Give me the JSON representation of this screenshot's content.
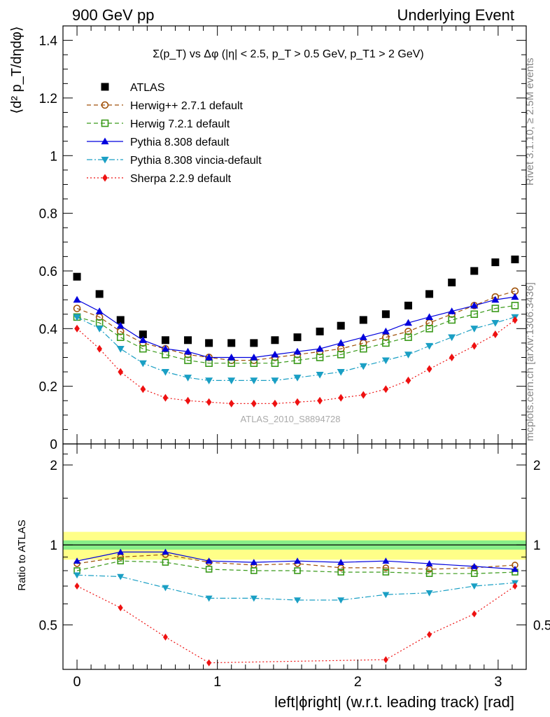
{
  "header": {
    "left": "900 GeV pp",
    "right": "Underlying Event"
  },
  "side": {
    "rivet": "Rivet 3.1.10, ≥ 2.5M events",
    "mcplots": "mcplots.cern.ch [arXiv:1306.3436]"
  },
  "watermark": "ATLAS_2010_S8894728",
  "chart_data": [
    {
      "type": "scatter",
      "title": "Σ(p_T) vs Δφ (|η| < 2.5, p_T > 0.5 GeV, p_T1 > 2 GeV)",
      "ylabel": "⟨d² p_T/dηdφ⟩",
      "ylim": [
        0,
        1.45
      ],
      "xlim": [
        -0.1,
        3.2
      ],
      "yticks": [
        0,
        0.2,
        0.4,
        0.6,
        0.8,
        1,
        1.2,
        1.4
      ],
      "ytick_labels": [
        "0",
        "0.2",
        "0.4",
        "0.6",
        "0.8",
        "1",
        "1.2",
        "1.4"
      ],
      "legend_position": "top-left",
      "series": [
        {
          "name": "ATLAS",
          "color": "#000000",
          "marker": "square-filled",
          "line": "none",
          "points": [
            [
              0.0,
              0.58
            ],
            [
              0.16,
              0.52
            ],
            [
              0.31,
              0.43
            ],
            [
              0.47,
              0.38
            ],
            [
              0.63,
              0.36
            ],
            [
              0.79,
              0.36
            ],
            [
              0.94,
              0.35
            ],
            [
              1.1,
              0.35
            ],
            [
              1.26,
              0.35
            ],
            [
              1.41,
              0.36
            ],
            [
              1.57,
              0.37
            ],
            [
              1.73,
              0.39
            ],
            [
              1.88,
              0.41
            ],
            [
              2.04,
              0.43
            ],
            [
              2.2,
              0.45
            ],
            [
              2.36,
              0.48
            ],
            [
              2.51,
              0.52
            ],
            [
              2.67,
              0.56
            ],
            [
              2.83,
              0.6
            ],
            [
              2.98,
              0.63
            ],
            [
              3.12,
              0.64
            ]
          ]
        },
        {
          "name": "Herwig++ 2.7.1 default",
          "color": "#a0520a",
          "marker": "circle-open",
          "line": "dashed",
          "points": [
            [
              0.0,
              0.47
            ],
            [
              0.16,
              0.44
            ],
            [
              0.31,
              0.39
            ],
            [
              0.47,
              0.35
            ],
            [
              0.63,
              0.33
            ],
            [
              0.79,
              0.31
            ],
            [
              0.94,
              0.3
            ],
            [
              1.1,
              0.29
            ],
            [
              1.26,
              0.29
            ],
            [
              1.41,
              0.3
            ],
            [
              1.57,
              0.31
            ],
            [
              1.73,
              0.32
            ],
            [
              1.88,
              0.33
            ],
            [
              2.04,
              0.35
            ],
            [
              2.2,
              0.37
            ],
            [
              2.36,
              0.39
            ],
            [
              2.51,
              0.42
            ],
            [
              2.67,
              0.45
            ],
            [
              2.83,
              0.48
            ],
            [
              2.98,
              0.51
            ],
            [
              3.12,
              0.53
            ]
          ]
        },
        {
          "name": "Herwig 7.2.1 default",
          "color": "#3a9a1a",
          "marker": "square-open",
          "line": "dashed",
          "points": [
            [
              0.0,
              0.44
            ],
            [
              0.16,
              0.42
            ],
            [
              0.31,
              0.37
            ],
            [
              0.47,
              0.33
            ],
            [
              0.63,
              0.31
            ],
            [
              0.79,
              0.29
            ],
            [
              0.94,
              0.28
            ],
            [
              1.1,
              0.28
            ],
            [
              1.26,
              0.28
            ],
            [
              1.41,
              0.28
            ],
            [
              1.57,
              0.29
            ],
            [
              1.73,
              0.3
            ],
            [
              1.88,
              0.31
            ],
            [
              2.04,
              0.33
            ],
            [
              2.2,
              0.35
            ],
            [
              2.36,
              0.37
            ],
            [
              2.51,
              0.4
            ],
            [
              2.67,
              0.43
            ],
            [
              2.83,
              0.45
            ],
            [
              2.98,
              0.47
            ],
            [
              3.12,
              0.48
            ]
          ]
        },
        {
          "name": "Pythia 8.308 default",
          "color": "#0000dd",
          "marker": "triangle-up-filled",
          "line": "solid",
          "points": [
            [
              0.0,
              0.5
            ],
            [
              0.16,
              0.46
            ],
            [
              0.31,
              0.41
            ],
            [
              0.47,
              0.36
            ],
            [
              0.63,
              0.33
            ],
            [
              0.79,
              0.32
            ],
            [
              0.94,
              0.3
            ],
            [
              1.1,
              0.3
            ],
            [
              1.26,
              0.3
            ],
            [
              1.41,
              0.31
            ],
            [
              1.57,
              0.32
            ],
            [
              1.73,
              0.33
            ],
            [
              1.88,
              0.35
            ],
            [
              2.04,
              0.37
            ],
            [
              2.2,
              0.39
            ],
            [
              2.36,
              0.42
            ],
            [
              2.51,
              0.44
            ],
            [
              2.67,
              0.46
            ],
            [
              2.83,
              0.48
            ],
            [
              2.98,
              0.5
            ],
            [
              3.12,
              0.51
            ]
          ]
        },
        {
          "name": "Pythia 8.308 vincia-default",
          "color": "#1a9fc4",
          "marker": "triangle-down-filled",
          "line": "dashdot",
          "points": [
            [
              0.0,
              0.44
            ],
            [
              0.16,
              0.4
            ],
            [
              0.31,
              0.33
            ],
            [
              0.47,
              0.28
            ],
            [
              0.63,
              0.25
            ],
            [
              0.79,
              0.23
            ],
            [
              0.94,
              0.22
            ],
            [
              1.1,
              0.22
            ],
            [
              1.26,
              0.22
            ],
            [
              1.41,
              0.22
            ],
            [
              1.57,
              0.23
            ],
            [
              1.73,
              0.24
            ],
            [
              1.88,
              0.25
            ],
            [
              2.04,
              0.27
            ],
            [
              2.2,
              0.29
            ],
            [
              2.36,
              0.31
            ],
            [
              2.51,
              0.34
            ],
            [
              2.67,
              0.37
            ],
            [
              2.83,
              0.4
            ],
            [
              2.98,
              0.42
            ],
            [
              3.12,
              0.44
            ]
          ]
        },
        {
          "name": "Sherpa 2.2.9 default",
          "color": "#ee1111",
          "marker": "diamond-filled",
          "line": "dotted",
          "points": [
            [
              0.0,
              0.4
            ],
            [
              0.16,
              0.33
            ],
            [
              0.31,
              0.25
            ],
            [
              0.47,
              0.19
            ],
            [
              0.63,
              0.16
            ],
            [
              0.79,
              0.15
            ],
            [
              0.94,
              0.145
            ],
            [
              1.1,
              0.14
            ],
            [
              1.26,
              0.14
            ],
            [
              1.41,
              0.14
            ],
            [
              1.57,
              0.145
            ],
            [
              1.73,
              0.15
            ],
            [
              1.88,
              0.16
            ],
            [
              2.04,
              0.17
            ],
            [
              2.2,
              0.19
            ],
            [
              2.36,
              0.22
            ],
            [
              2.51,
              0.26
            ],
            [
              2.67,
              0.3
            ],
            [
              2.83,
              0.34
            ],
            [
              2.98,
              0.38
            ],
            [
              3.12,
              0.43
            ]
          ]
        }
      ]
    },
    {
      "type": "scatter",
      "ylabel": "Ratio to ATLAS",
      "xlabel": "left|ϕright| (w.r.t. leading track) [rad]",
      "xticks": [
        0,
        1,
        2,
        3
      ],
      "xtick_labels": [
        "0",
        "1",
        "2",
        "3"
      ],
      "ylim": [
        0.34,
        2.4
      ],
      "yticks": [
        0.5,
        1,
        2
      ],
      "ytick_labels": [
        "0.5",
        "1",
        "2"
      ],
      "bands": [
        {
          "name": "ATLAS total uncertainty",
          "color": "#ffff88",
          "range": [
            0.88,
            1.12
          ]
        },
        {
          "name": "ATLAS stat. uncertainty",
          "color": "#88ee88",
          "range": [
            0.96,
            1.04
          ]
        }
      ],
      "series": [
        {
          "name": "Herwig++ 2.7.1 default",
          "color": "#a0520a",
          "marker": "circle-open",
          "line": "dashed",
          "points": [
            [
              0.0,
              0.85
            ],
            [
              0.31,
              0.9
            ],
            [
              0.63,
              0.92
            ],
            [
              0.94,
              0.86
            ],
            [
              1.26,
              0.84
            ],
            [
              1.57,
              0.85
            ],
            [
              1.88,
              0.82
            ],
            [
              2.2,
              0.82
            ],
            [
              2.51,
              0.81
            ],
            [
              2.83,
              0.82
            ],
            [
              3.12,
              0.84
            ]
          ]
        },
        {
          "name": "Herwig 7.2.1 default",
          "color": "#3a9a1a",
          "marker": "square-open",
          "line": "dashed",
          "points": [
            [
              0.0,
              0.8
            ],
            [
              0.31,
              0.87
            ],
            [
              0.63,
              0.86
            ],
            [
              0.94,
              0.81
            ],
            [
              1.26,
              0.8
            ],
            [
              1.57,
              0.8
            ],
            [
              1.88,
              0.79
            ],
            [
              2.2,
              0.79
            ],
            [
              2.51,
              0.78
            ],
            [
              2.83,
              0.78
            ],
            [
              3.12,
              0.79
            ]
          ]
        },
        {
          "name": "Pythia 8.308 default",
          "color": "#0000dd",
          "marker": "triangle-up-filled",
          "line": "solid",
          "points": [
            [
              0.0,
              0.87
            ],
            [
              0.31,
              0.94
            ],
            [
              0.63,
              0.94
            ],
            [
              0.94,
              0.87
            ],
            [
              1.26,
              0.86
            ],
            [
              1.57,
              0.87
            ],
            [
              1.88,
              0.86
            ],
            [
              2.2,
              0.87
            ],
            [
              2.51,
              0.85
            ],
            [
              2.83,
              0.83
            ],
            [
              3.12,
              0.81
            ]
          ]
        },
        {
          "name": "Pythia 8.308 vincia-default",
          "color": "#1a9fc4",
          "marker": "triangle-down-filled",
          "line": "dashdot",
          "points": [
            [
              0.0,
              0.77
            ],
            [
              0.31,
              0.76
            ],
            [
              0.63,
              0.69
            ],
            [
              0.94,
              0.63
            ],
            [
              1.26,
              0.63
            ],
            [
              1.57,
              0.62
            ],
            [
              1.88,
              0.62
            ],
            [
              2.2,
              0.65
            ],
            [
              2.51,
              0.66
            ],
            [
              2.83,
              0.7
            ],
            [
              3.12,
              0.72
            ]
          ]
        },
        {
          "name": "Sherpa 2.2.9 default",
          "color": "#ee1111",
          "marker": "diamond-filled",
          "line": "dotted",
          "points": [
            [
              0.0,
              0.7
            ],
            [
              0.31,
              0.58
            ],
            [
              0.63,
              0.45
            ],
            [
              0.94,
              0.36
            ],
            [
              1.26,
              0.34
            ],
            [
              1.57,
              0.31
            ],
            [
              1.88,
              0.31
            ],
            [
              2.2,
              0.37
            ],
            [
              2.51,
              0.46
            ],
            [
              2.83,
              0.55
            ],
            [
              3.12,
              0.7
            ]
          ]
        }
      ]
    }
  ]
}
